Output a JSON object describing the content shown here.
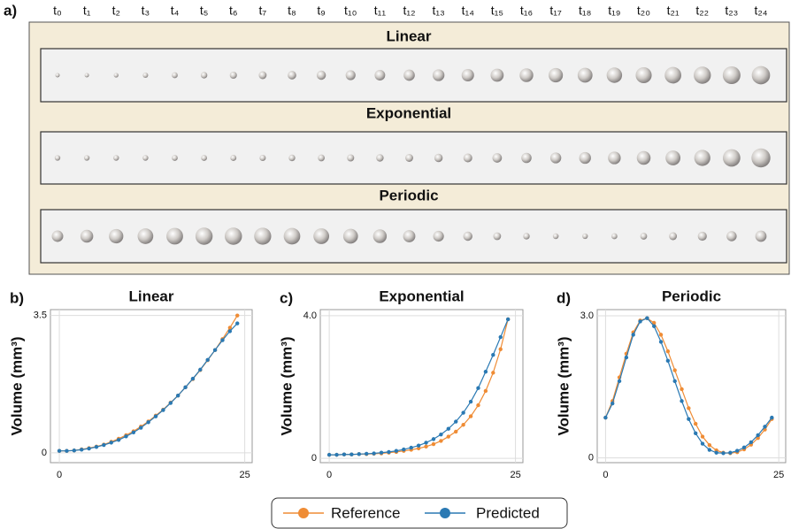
{
  "panel_a": {
    "label": "a)",
    "time_labels": [
      "t₀",
      "t₁",
      "t₂",
      "t₃",
      "t₄",
      "t₅",
      "t₆",
      "t₇",
      "t₈",
      "t₉",
      "t₁₀",
      "t₁₁",
      "t₁₂",
      "t₁₃",
      "t₁₄",
      "t₁₅",
      "t₁₆",
      "t₁₇",
      "t₁₈",
      "t₁₉",
      "t₂₀",
      "t₂₁",
      "t₂₂",
      "t₂₃",
      "t₂₄"
    ],
    "rows": [
      {
        "title": "Linear"
      },
      {
        "title": "Exponential"
      },
      {
        "title": "Periodic"
      }
    ]
  },
  "chart_data": [
    {
      "type": "line",
      "panel": "b)",
      "title": "Linear",
      "y_label": "Volume (mm³)",
      "x": [
        0,
        1,
        2,
        3,
        4,
        5,
        6,
        7,
        8,
        9,
        10,
        11,
        12,
        13,
        14,
        15,
        16,
        17,
        18,
        19,
        20,
        21,
        22,
        23,
        24
      ],
      "series": [
        {
          "name": "Reference",
          "color": "#ef8c35",
          "values": [
            0.05,
            0.05,
            0.06,
            0.09,
            0.12,
            0.16,
            0.21,
            0.28,
            0.36,
            0.45,
            0.55,
            0.67,
            0.8,
            0.95,
            1.1,
            1.28,
            1.46,
            1.67,
            1.88,
            2.11,
            2.36,
            2.62,
            2.9,
            3.19,
            3.5
          ]
        },
        {
          "name": "Predicted",
          "color": "#2a79b3",
          "values": [
            0.05,
            0.05,
            0.06,
            0.08,
            0.11,
            0.15,
            0.2,
            0.26,
            0.33,
            0.42,
            0.52,
            0.64,
            0.78,
            0.93,
            1.09,
            1.27,
            1.46,
            1.67,
            1.89,
            2.12,
            2.37,
            2.62,
            2.87,
            3.1,
            3.3
          ]
        }
      ],
      "xlim": [
        -1.2,
        26
      ],
      "ylim": [
        -0.25,
        3.65
      ],
      "xticks": [
        0,
        25
      ],
      "yticks": [
        0,
        3.5
      ],
      "grid": true
    },
    {
      "type": "line",
      "panel": "c)",
      "title": "Exponential",
      "y_label": "Volume (mm³)",
      "x": [
        0,
        1,
        2,
        3,
        4,
        5,
        6,
        7,
        8,
        9,
        10,
        11,
        12,
        13,
        14,
        15,
        16,
        17,
        18,
        19,
        20,
        21,
        22,
        23,
        24
      ],
      "series": [
        {
          "name": "Reference",
          "color": "#ef8c35",
          "values": [
            0.1,
            0.1,
            0.11,
            0.11,
            0.12,
            0.12,
            0.13,
            0.14,
            0.16,
            0.18,
            0.21,
            0.24,
            0.28,
            0.33,
            0.4,
            0.49,
            0.61,
            0.75,
            0.94,
            1.18,
            1.49,
            1.89,
            2.4,
            3.06,
            3.9
          ]
        },
        {
          "name": "Predicted",
          "color": "#2a79b3",
          "values": [
            0.1,
            0.1,
            0.11,
            0.11,
            0.12,
            0.13,
            0.14,
            0.16,
            0.18,
            0.21,
            0.25,
            0.3,
            0.36,
            0.44,
            0.54,
            0.67,
            0.83,
            1.03,
            1.28,
            1.59,
            1.97,
            2.43,
            2.9,
            3.4,
            3.9
          ]
        }
      ],
      "xlim": [
        -1.2,
        26
      ],
      "ylim": [
        -0.12,
        4.17
      ],
      "xticks": [
        0,
        25
      ],
      "yticks": [
        0,
        {
          "value": 4,
          "label": "4.0"
        }
      ],
      "grid": true
    },
    {
      "type": "line",
      "panel": "d)",
      "title": "Periodic",
      "y_label": "Volume (mm³)",
      "x": [
        0,
        1,
        2,
        3,
        4,
        5,
        6,
        7,
        8,
        9,
        10,
        11,
        12,
        13,
        14,
        15,
        16,
        17,
        18,
        19,
        20,
        21,
        22,
        23,
        24
      ],
      "series": [
        {
          "name": "Reference",
          "color": "#ef8c35",
          "values": [
            0.85,
            1.2,
            1.7,
            2.2,
            2.65,
            2.9,
            2.95,
            2.85,
            2.6,
            2.25,
            1.85,
            1.45,
            1.05,
            0.72,
            0.45,
            0.27,
            0.16,
            0.11,
            0.1,
            0.12,
            0.18,
            0.28,
            0.42,
            0.6,
            0.82
          ]
        },
        {
          "name": "Predicted",
          "color": "#2a79b3",
          "values": [
            0.85,
            1.15,
            1.62,
            2.12,
            2.6,
            2.88,
            2.95,
            2.78,
            2.45,
            2.05,
            1.62,
            1.2,
            0.82,
            0.52,
            0.3,
            0.17,
            0.11,
            0.1,
            0.11,
            0.15,
            0.22,
            0.33,
            0.48,
            0.66,
            0.85
          ]
        }
      ],
      "xlim": [
        -1.2,
        26
      ],
      "ylim": [
        -0.1,
        3.13
      ],
      "xticks": [
        0,
        25
      ],
      "yticks": [
        0,
        {
          "value": 3,
          "label": "3.0"
        }
      ],
      "grid": true
    }
  ]
}
